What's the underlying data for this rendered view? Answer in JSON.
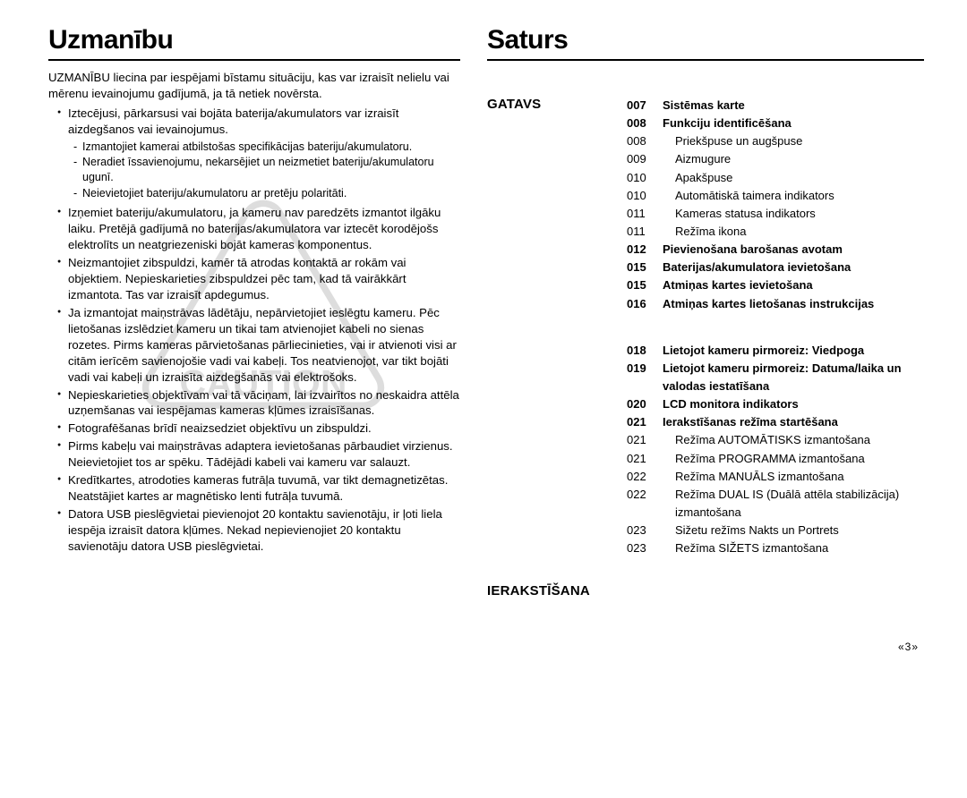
{
  "pageNumber": "3",
  "pageNumberDecor": {
    "left": "«",
    "right": "»"
  },
  "left": {
    "heading": "Uzmanību",
    "intro": "UZMANĪBU liecina par iespējami bīstamu situāciju, kas var izraisīt nelielu vai mērenu ievainojumu gadījumā, ja tā netiek novērsta.",
    "bullets": [
      {
        "text": "Iztecējusi, pārkarsusi vai bojāta baterija/akumulators var izraisīt aizdegšanos vai ievainojumus.",
        "sub": [
          "Izmantojiet kamerai atbilstošas specifikācijas bateriju/akumulatoru.",
          "Neradiet īssavienojumu, nekarsējiet un neizmetiet bateriju/akumulatoru ugunī.",
          "Neievietojiet bateriju/akumulatoru ar pretēju polaritāti."
        ]
      },
      {
        "text": "Izņemiet bateriju/akumulatoru, ja kameru nav paredzēts izmantot ilgāku laiku. Pretējā gadījumā no baterijas/akumulatora var iztecēt korodējošs elektrolīts un neatgriezeniski bojāt kameras komponentus."
      },
      {
        "text": "Neizmantojiet zibspuldzi, kamēr tā atrodas kontaktā ar rokām vai objektiem. Nepieskarieties zibspuldzei pēc tam, kad tā vairākkārt izmantota. Tas var izraisīt apdegumus."
      },
      {
        "text": "Ja izmantojat maiņstrāvas lādētāju, nepārvietojiet ieslēgtu kameru. Pēc lietošanas izslēdziet kameru un tikai tam atvienojiet kabeli no sienas rozetes. Pirms kameras pārvietošanas pārliecinieties, vai ir atvienoti visi ar citām ierīcēm savienojošie vadi vai kabeļi. Tos neatvienojot, var tikt bojāti vadi vai kabeļi un izraisīta aizdegšanās vai elektrošoks."
      },
      {
        "text": "Nepieskarieties objektīvam vai tā vāciņam, lai izvairītos no neskaidra attēla uzņemšanas vai iespējamas kameras kļūmes izraisīšanas."
      },
      {
        "text": "Fotografēšanas brīdī neaizsedziet objektīvu un zibspuldzi."
      },
      {
        "text": "Pirms kabeļu vai maiņstrāvas adaptera ievietošanas pārbaudiet virzienus. Neievietojiet tos ar spēku. Tādējādi kabeli vai kameru var salauzt."
      },
      {
        "text": "Kredītkartes, atrodoties kameras futrāļa tuvumā, var tikt demagnetizētas. Neatstājiet kartes ar magnētisko lenti futrāļa tuvumā."
      },
      {
        "text": "Datora USB pieslēgvietai pievienojot 20 kontaktu savienotāju, ir ļoti liela iespēja izraisīt datora kļūmes. Nekad nepievienojiet 20 kontaktu savienotāju datora USB pieslēgvietai."
      }
    ]
  },
  "right": {
    "heading": "Saturs",
    "sections": [
      {
        "label": "GATAVS",
        "entries": [
          {
            "num": "007",
            "text": "Sistēmas karte",
            "bold": true
          },
          {
            "num": "008",
            "text": "Funkciju identificēšana",
            "bold": true
          },
          {
            "num": "008",
            "text": "Priekšpuse un augšpuse",
            "indent": true
          },
          {
            "num": "009",
            "text": "Aizmugure",
            "indent": true
          },
          {
            "num": "010",
            "text": "Apakšpuse",
            "indent": true
          },
          {
            "num": "010",
            "text": "Automātiskā taimera indikators",
            "indent": true
          },
          {
            "num": "011",
            "text": "Kameras statusa indikators",
            "indent": true
          },
          {
            "num": "011",
            "text": "Režīma ikona",
            "indent": true
          },
          {
            "num": "012",
            "text": "Pievienošana barošanas avotam",
            "bold": true
          },
          {
            "num": "015",
            "text": "Baterijas/akumulatora ievietošana",
            "bold": true
          },
          {
            "num": "015",
            "text": "Atmiņas kartes ievietošana",
            "bold": true
          },
          {
            "num": "016",
            "text": "Atmiņas kartes lietošanas instrukcijas",
            "bold": true
          }
        ]
      },
      {
        "label": "IERAKSTĪŠANA",
        "entries": [
          {
            "num": "018",
            "text": "Lietojot kameru pirmoreiz: Viedpoga",
            "bold": true
          },
          {
            "num": "019",
            "text": "Lietojot kameru pirmoreiz: Datuma/laika un valodas iestatīšana",
            "bold": true
          },
          {
            "num": "020",
            "text": "LCD monitora indikators",
            "bold": true
          },
          {
            "num": "021",
            "text": "Ierakstīšanas režīma startēšana",
            "bold": true
          },
          {
            "num": "021",
            "text": "Režīma AUTOMĀTISKS izmantošana",
            "indent": true
          },
          {
            "num": "021",
            "text": "Režīma PROGRAMMA izmantošana",
            "indent": true
          },
          {
            "num": "022",
            "text": "Režīma MANUĀLS izmantošana",
            "indent": true
          },
          {
            "num": "022",
            "text": "Režīma DUAL IS (Duālā attēla stabilizācija) izmantošana",
            "indent": true
          },
          {
            "num": "023",
            "text": "Sižetu režīms Nakts un Portrets",
            "indent": true
          },
          {
            "num": "023",
            "text": "Režīma SIŽETS izmantošana",
            "indent": true
          }
        ]
      }
    ]
  },
  "cautionWatermark": "CAUTION"
}
